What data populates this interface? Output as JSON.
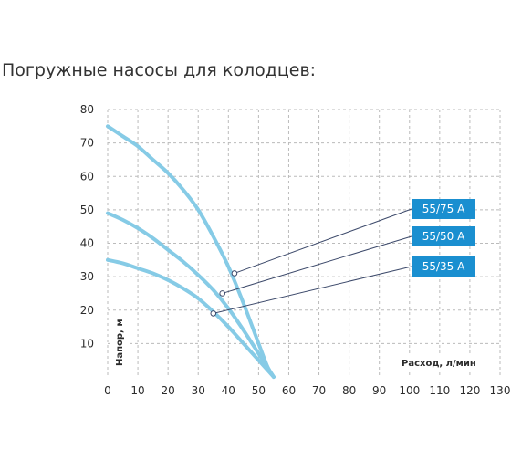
{
  "page": {
    "title": "Погружные насосы для колодцев:"
  },
  "colors": {
    "curve": "#86cbe6",
    "legend_box": "#1a8fd0",
    "leader_line": "#3d4a6b",
    "grid": "#bbbbbb"
  },
  "chart_data": {
    "type": "line",
    "title": "",
    "xlabel": "Расход, л/мин",
    "ylabel": "Напор, м",
    "xlim": [
      0,
      130
    ],
    "ylim": [
      0,
      80
    ],
    "x_ticks": [
      "0",
      "10",
      "20",
      "30",
      "40",
      "50",
      "60",
      "70",
      "80",
      "90",
      "100",
      "110",
      "120",
      "130"
    ],
    "y_ticks": [
      "10",
      "20",
      "30",
      "40",
      "50",
      "60",
      "70",
      "80"
    ],
    "grid": true,
    "legend_position": "right",
    "series": [
      {
        "name": "55/75 А",
        "x": [
          0,
          5,
          10,
          15,
          20,
          25,
          30,
          35,
          40,
          45,
          50,
          53,
          55
        ],
        "y": [
          75,
          72,
          69,
          65,
          61,
          56,
          50,
          42,
          33,
          22,
          10,
          3,
          0
        ],
        "marker": [
          42,
          31
        ]
      },
      {
        "name": "55/50 А",
        "x": [
          0,
          5,
          10,
          15,
          20,
          25,
          30,
          35,
          40,
          45,
          50,
          55
        ],
        "y": [
          49,
          47,
          44.5,
          41.5,
          38,
          34.5,
          30.5,
          26,
          20.5,
          14,
          7,
          0
        ],
        "marker": [
          38,
          25
        ]
      },
      {
        "name": "55/35 А",
        "x": [
          0,
          5,
          10,
          15,
          20,
          25,
          30,
          35,
          40,
          45,
          50,
          55
        ],
        "y": [
          35,
          34,
          32.5,
          31,
          29,
          26.5,
          23.5,
          19.5,
          15,
          10,
          5,
          0
        ],
        "marker": [
          35,
          19
        ]
      }
    ]
  }
}
